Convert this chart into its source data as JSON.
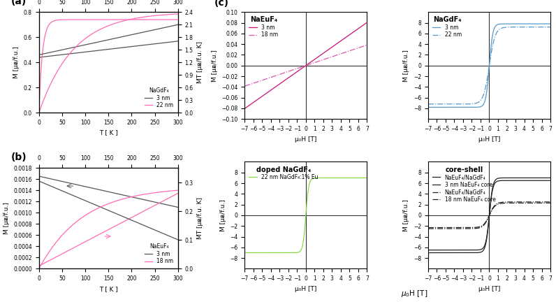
{
  "panel_a": {
    "title": "NaGdF₄",
    "legend_lines": [
      "3 nm",
      "22 nm"
    ],
    "colors": [
      "#555555",
      "#ff69b4"
    ],
    "ylabel_left": "M [μᴃ/f.u.]",
    "ylabel_right": "MT [μᴃ/f.u. K]",
    "xlabel": "T [ K ]",
    "ylim_left": [
      0.0,
      0.8
    ],
    "ylim_right": [
      0.0,
      2.4
    ],
    "xlim": [
      0,
      300
    ],
    "yticks_left": [
      0.0,
      0.2,
      0.4,
      0.6,
      0.8
    ],
    "yticks_right": [
      0.0,
      0.3,
      0.6,
      0.9,
      1.2,
      1.5,
      1.8,
      2.1,
      2.4
    ],
    "xticks": [
      0,
      50,
      100,
      150,
      200,
      250,
      300
    ]
  },
  "panel_b": {
    "title": "NaEuF₄",
    "legend_lines": [
      "3 nm",
      "18 nm"
    ],
    "colors": [
      "#555555",
      "#ff69b4"
    ],
    "ylabel_left": "M [μᴃ/f.u.]",
    "ylabel_right": "MT [μᴃ/f.u. K]",
    "xlabel": "T [ K ]",
    "ylim_left": [
      0.0,
      0.0018
    ],
    "ylim_right": [
      0.0,
      0.35
    ],
    "xlim": [
      0,
      300
    ],
    "yticks_left": [
      0.0,
      0.0002,
      0.0004,
      0.0006,
      0.0008,
      0.001,
      0.0012,
      0.0014,
      0.0016,
      0.0018
    ],
    "yticks_right": [
      0.0,
      0.1,
      0.2,
      0.3
    ],
    "xticks": [
      0,
      50,
      100,
      150,
      200,
      250,
      300
    ]
  },
  "panel_c_naeuF4": {
    "title": "NaEuF₄",
    "legend_lines": [
      "3 nm",
      "18 nm"
    ],
    "colors": [
      "#cc1177",
      "#dd55aa"
    ],
    "linestyles": [
      "-",
      "-."
    ],
    "ylabel": "M [μᴃ/f.u.]",
    "xlabel": "μ₀H [T]",
    "ylim": [
      -0.1,
      0.1
    ],
    "xlim": [
      -7,
      7
    ],
    "yticks": [
      -0.1,
      -0.08,
      -0.06,
      -0.04,
      -0.02,
      0.0,
      0.02,
      0.04,
      0.06,
      0.08,
      0.1
    ],
    "slope_3nm": 0.0115,
    "slope_18nm": 0.0055
  },
  "panel_c_nagdF4": {
    "title": "NaGdF₄",
    "legend_lines": [
      "3 nm",
      "22 nm"
    ],
    "colors": [
      "#5599cc",
      "#5599cc"
    ],
    "linestyles": [
      "-",
      "-."
    ],
    "ylabel": "M [μᴃ/f.u.]",
    "xlabel": "μ₀H [T]",
    "ylim": [
      -10,
      10
    ],
    "xlim": [
      -7,
      7
    ],
    "yticks": [
      -8,
      -6,
      -4,
      -2,
      0,
      2,
      4,
      6,
      8
    ],
    "sat_3nm": 7.8,
    "sat_22nm": 7.2,
    "k_3nm": 5.0,
    "k_22nm": 3.0
  },
  "panel_c_doped": {
    "title": "doped NaGdF₄",
    "legend_lines": [
      "22 nm NaGdF₄:1% Eu"
    ],
    "colors": [
      "#88dd44"
    ],
    "linestyles": [
      "-"
    ],
    "ylabel": "M [μᴃ/f.u.]",
    "xlabel": "μ₀H [T]",
    "ylim": [
      -10,
      10
    ],
    "xlim": [
      -7,
      7
    ],
    "yticks": [
      -8,
      -6,
      -4,
      -2,
      0,
      2,
      4,
      6,
      8
    ],
    "sat": 7.0,
    "k": 6.0
  },
  "panel_c_coreshell": {
    "title": "core-shell",
    "legend_lines": [
      "NaEuF₄/NaGdF₄",
      "3 nm NaEuF₄ core",
      "NaEuF₄/NaGdF₄",
      "18 nm NaEuF₄ core"
    ],
    "colors": [
      "#222222",
      "#222222",
      "#222222",
      "#222222"
    ],
    "linestyles": [
      "-",
      "-",
      "-.",
      "-."
    ],
    "ylabel": "M [μᴃ/f.u.]",
    "xlabel": "μ₀H [T]",
    "ylim": [
      -10,
      10
    ],
    "xlim": [
      -7,
      7
    ],
    "yticks": [
      -8,
      -6,
      -4,
      -2,
      0,
      2,
      4,
      6,
      8
    ],
    "sat_cs1a": 7.0,
    "sat_cs1b": 6.5,
    "sat_cs2a": 2.5,
    "sat_cs2b": 2.3,
    "k_cs1": 5.0,
    "k_cs2": 3.0
  },
  "background_color": "#ffffff",
  "panel_label_fontsize": 10,
  "axis_label_fontsize": 6.5,
  "tick_fontsize": 5.5,
  "legend_fontsize": 5.5,
  "title_fontsize": 7,
  "line_width": 0.9
}
